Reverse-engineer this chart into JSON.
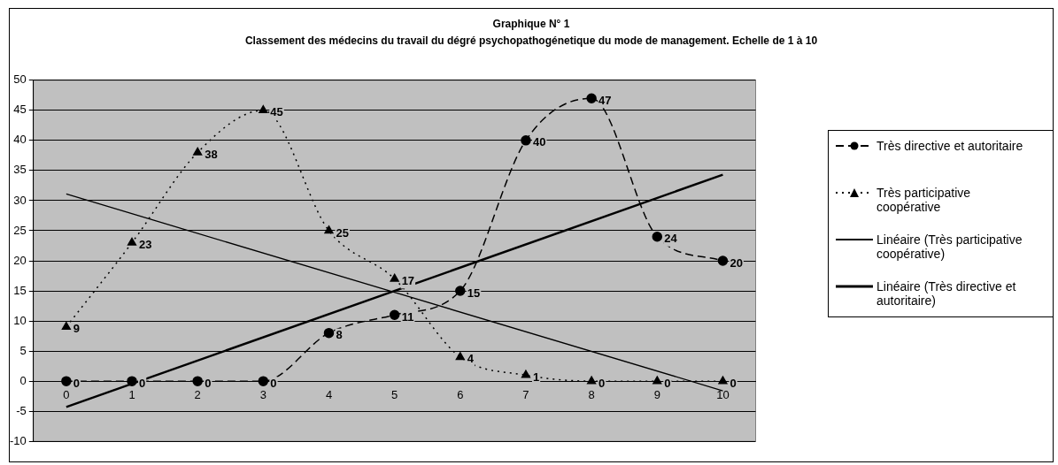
{
  "chart_data": {
    "type": "line",
    "title": "Graphique N° 1",
    "subtitle": "Classement des médecins du travail du dégré psychopathogénetique du mode de management. Echelle de 1 à 10",
    "x": [
      0,
      1,
      2,
      3,
      4,
      5,
      6,
      7,
      8,
      9,
      10
    ],
    "xlim": [
      -0.5,
      10.5
    ],
    "xticks": [
      0,
      1,
      2,
      3,
      4,
      5,
      6,
      7,
      8,
      9,
      10
    ],
    "ylim": [
      -10,
      50
    ],
    "yticks": [
      -10,
      -5,
      0,
      5,
      10,
      15,
      20,
      25,
      30,
      35,
      40,
      45,
      50
    ],
    "grid": "y",
    "legend": "right",
    "series": [
      {
        "name": "Très directive et autoritaire",
        "color": "#000000",
        "marker": "circle",
        "line_style": "dashed",
        "values": [
          0,
          0,
          0,
          0,
          8,
          11,
          15,
          40,
          47,
          24,
          20
        ],
        "value_labels": [
          "0",
          "0",
          "0",
          "0",
          "8",
          "11",
          "15",
          "40",
          "47",
          "24",
          "20"
        ]
      },
      {
        "name": "Très participative coopérative",
        "color": "#000000",
        "marker": "triangle",
        "line_style": "dotted",
        "values": [
          9,
          23,
          38,
          45,
          25,
          17,
          4,
          1,
          0,
          0,
          0
        ],
        "value_labels": [
          "9",
          "23",
          "38",
          "45",
          "25",
          "17",
          "4",
          "1",
          "0",
          "0",
          "0"
        ]
      },
      {
        "name": "Linéaire (Très participative coopérative)",
        "color": "#000000",
        "marker": "none",
        "line_style": "solid",
        "values": [
          31.1,
          null,
          null,
          null,
          null,
          null,
          null,
          null,
          null,
          null,
          -1.6
        ]
      },
      {
        "name": "Linéaire (Très directive et autoritaire)",
        "color": "#000000",
        "marker": "none",
        "line_style": "solid",
        "values": [
          -4.3,
          null,
          null,
          null,
          null,
          null,
          null,
          null,
          null,
          null,
          34.3
        ]
      }
    ]
  }
}
